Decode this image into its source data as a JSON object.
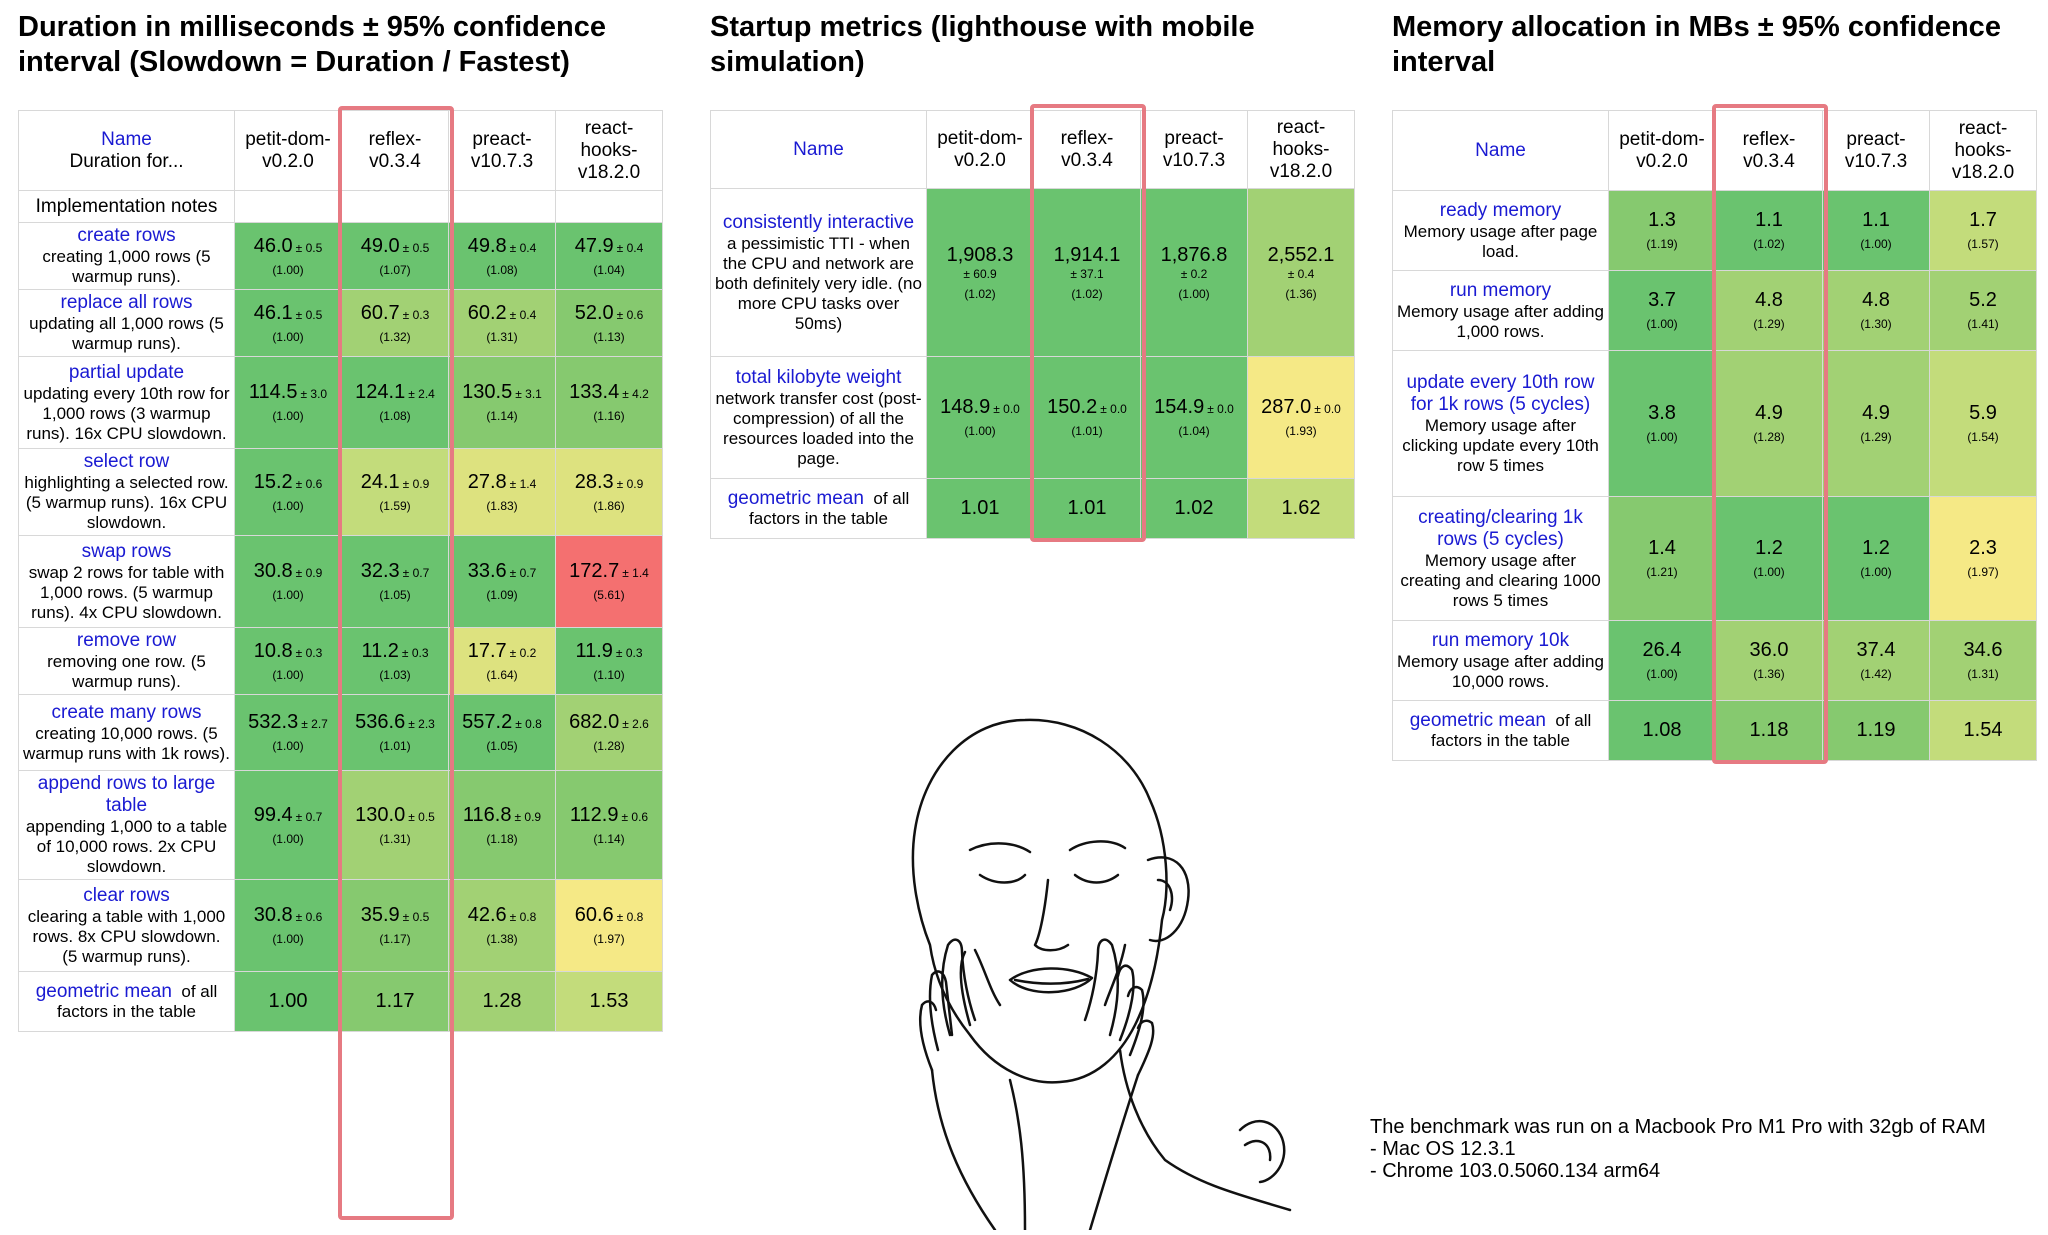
{
  "colors": {
    "g1": "#5cbd6e",
    "g2": "#6ac36f",
    "g3": "#86c96f",
    "g4": "#a2d174",
    "g5": "#c3dc7b",
    "y1": "#dde27f",
    "y2": "#f5e986",
    "r1": "#f47070",
    "highlight": "#e67a82",
    "link": "#1a1ad2"
  },
  "duration": {
    "title": "Duration in milliseconds ± 95% confidence interval (Slowdown = Duration / Fastest)",
    "header": {
      "name": "Name",
      "sub": "Duration for...",
      "cols": [
        "petit-dom-v0.2.0",
        "reflex-v0.3.4",
        "preact-v10.7.3",
        "react-hooks-v18.2.0"
      ]
    },
    "notes_label": "Implementation notes",
    "rows": [
      {
        "name": "create rows",
        "desc": "creating 1,000 rows (5 warmup runs).",
        "cells": [
          [
            "46.0",
            "± 0.5",
            "(1.00)",
            "g2"
          ],
          [
            "49.0",
            "± 0.5",
            "(1.07)",
            "g2"
          ],
          [
            "49.8",
            "± 0.4",
            "(1.08)",
            "g2"
          ],
          [
            "47.9",
            "± 0.4",
            "(1.04)",
            "g2"
          ]
        ]
      },
      {
        "name": "replace all rows",
        "desc": "updating all 1,000 rows (5 warmup runs).",
        "cells": [
          [
            "46.1",
            "± 0.5",
            "(1.00)",
            "g2"
          ],
          [
            "60.7",
            "± 0.3",
            "(1.32)",
            "g4"
          ],
          [
            "60.2",
            "± 0.4",
            "(1.31)",
            "g4"
          ],
          [
            "52.0",
            "± 0.6",
            "(1.13)",
            "g3"
          ]
        ]
      },
      {
        "name": "partial update",
        "desc": "updating every 10th row for 1,000 rows (3 warmup runs). 16x CPU slowdown.",
        "cells": [
          [
            "114.5",
            "± 3.0",
            "(1.00)",
            "g2"
          ],
          [
            "124.1",
            "± 2.4",
            "(1.08)",
            "g2"
          ],
          [
            "130.5",
            "± 3.1",
            "(1.14)",
            "g3"
          ],
          [
            "133.4",
            "± 4.2",
            "(1.16)",
            "g3"
          ]
        ]
      },
      {
        "name": "select row",
        "desc": "highlighting a selected row. (5 warmup runs). 16x CPU slowdown.",
        "cells": [
          [
            "15.2",
            "± 0.6",
            "(1.00)",
            "g2"
          ],
          [
            "24.1",
            "± 0.9",
            "(1.59)",
            "g5"
          ],
          [
            "27.8",
            "± 1.4",
            "(1.83)",
            "y1"
          ],
          [
            "28.3",
            "± 0.9",
            "(1.86)",
            "y1"
          ]
        ]
      },
      {
        "name": "swap rows",
        "desc": "swap 2 rows for table with 1,000 rows. (5 warmup runs). 4x CPU slowdown.",
        "cells": [
          [
            "30.8",
            "± 0.9",
            "(1.00)",
            "g2"
          ],
          [
            "32.3",
            "± 0.7",
            "(1.05)",
            "g2"
          ],
          [
            "33.6",
            "± 0.7",
            "(1.09)",
            "g2"
          ],
          [
            "172.7",
            "± 1.4",
            "(5.61)",
            "r1"
          ]
        ]
      },
      {
        "name": "remove row",
        "desc": "removing one row. (5 warmup runs).",
        "cells": [
          [
            "10.8",
            "± 0.3",
            "(1.00)",
            "g2"
          ],
          [
            "11.2",
            "± 0.3",
            "(1.03)",
            "g2"
          ],
          [
            "17.7",
            "± 0.2",
            "(1.64)",
            "y1"
          ],
          [
            "11.9",
            "± 0.3",
            "(1.10)",
            "g2"
          ]
        ]
      },
      {
        "name": "create many rows",
        "desc": "creating 10,000 rows. (5 warmup runs with 1k rows).",
        "cells": [
          [
            "532.3",
            "± 2.7",
            "(1.00)",
            "g2"
          ],
          [
            "536.6",
            "± 2.3",
            "(1.01)",
            "g2"
          ],
          [
            "557.2",
            "± 0.8",
            "(1.05)",
            "g2"
          ],
          [
            "682.0",
            "± 2.6",
            "(1.28)",
            "g4"
          ]
        ]
      },
      {
        "name": "append rows to large table",
        "desc": "appending 1,000 to a table of 10,000 rows. 2x CPU slowdown.",
        "cells": [
          [
            "99.4",
            "± 0.7",
            "(1.00)",
            "g2"
          ],
          [
            "130.0",
            "± 0.5",
            "(1.31)",
            "g4"
          ],
          [
            "116.8",
            "± 0.9",
            "(1.18)",
            "g3"
          ],
          [
            "112.9",
            "± 0.6",
            "(1.14)",
            "g3"
          ]
        ]
      },
      {
        "name": "clear rows",
        "desc": "clearing a table with 1,000 rows. 8x CPU slowdown. (5 warmup runs).",
        "cells": [
          [
            "30.8",
            "± 0.6",
            "(1.00)",
            "g2"
          ],
          [
            "35.9",
            "± 0.5",
            "(1.17)",
            "g3"
          ],
          [
            "42.6",
            "± 0.8",
            "(1.38)",
            "g4"
          ],
          [
            "60.6",
            "± 0.8",
            "(1.97)",
            "y2"
          ]
        ]
      }
    ],
    "gm": {
      "name": "geometric mean",
      "desc": "of all factors in the table",
      "cells": [
        [
          "1.00",
          "g2"
        ],
        [
          "1.17",
          "g3"
        ],
        [
          "1.28",
          "g4"
        ],
        [
          "1.53",
          "g5"
        ]
      ]
    }
  },
  "startup": {
    "title": "Startup metrics (lighthouse with mobile simulation)",
    "header": {
      "name": "Name",
      "cols": [
        "petit-dom-v0.2.0",
        "reflex-v0.3.4",
        "preact-v10.7.3",
        "react-hooks-v18.2.0"
      ]
    },
    "rows": [
      {
        "name": "consistently interactive",
        "desc": "a pessimistic TTI - when the CPU and network are both definitely very idle. (no more CPU tasks over 50ms)",
        "cells": [
          [
            "1,908.3",
            "± 60.9",
            "(1.02)",
            "g2"
          ],
          [
            "1,914.1",
            "± 37.1",
            "(1.02)",
            "g2"
          ],
          [
            "1,876.8",
            "± 0.2",
            "(1.00)",
            "g2"
          ],
          [
            "2,552.1",
            "± 0.4",
            "(1.36)",
            "g4"
          ]
        ]
      },
      {
        "name": "total kilobyte weight",
        "desc": "network transfer cost (post-compression) of all the resources loaded into the page.",
        "cells": [
          [
            "148.9",
            "± 0.0",
            "(1.00)",
            "g2"
          ],
          [
            "150.2",
            "± 0.0",
            "(1.01)",
            "g2"
          ],
          [
            "154.9",
            "± 0.0",
            "(1.04)",
            "g2"
          ],
          [
            "287.0",
            "± 0.0",
            "(1.93)",
            "y2"
          ]
        ]
      }
    ],
    "gm": {
      "name": "geometric mean",
      "desc": "of all factors in the table",
      "cells": [
        [
          "1.01",
          "g2"
        ],
        [
          "1.01",
          "g2"
        ],
        [
          "1.02",
          "g2"
        ],
        [
          "1.62",
          "g5"
        ]
      ]
    }
  },
  "memory": {
    "title": "Memory allocation in MBs ± 95% confidence interval",
    "header": {
      "name": "Name",
      "cols": [
        "petit-dom-v0.2.0",
        "reflex-v0.3.4",
        "preact-v10.7.3",
        "react-hooks-v18.2.0"
      ]
    },
    "rows": [
      {
        "name": "ready memory",
        "desc": "Memory usage after page load.",
        "cells": [
          [
            "1.3",
            "(1.19)",
            "g3"
          ],
          [
            "1.1",
            "(1.02)",
            "g2"
          ],
          [
            "1.1",
            "(1.00)",
            "g2"
          ],
          [
            "1.7",
            "(1.57)",
            "g5"
          ]
        ]
      },
      {
        "name": "run memory",
        "desc": "Memory usage after adding 1,000 rows.",
        "cells": [
          [
            "3.7",
            "(1.00)",
            "g2"
          ],
          [
            "4.8",
            "(1.29)",
            "g4"
          ],
          [
            "4.8",
            "(1.30)",
            "g4"
          ],
          [
            "5.2",
            "(1.41)",
            "g4"
          ]
        ]
      },
      {
        "name": "update every 10th row for 1k rows (5 cycles)",
        "desc": "Memory usage after clicking update every 10th row 5 times",
        "cells": [
          [
            "3.8",
            "(1.00)",
            "g2"
          ],
          [
            "4.9",
            "(1.28)",
            "g4"
          ],
          [
            "4.9",
            "(1.29)",
            "g4"
          ],
          [
            "5.9",
            "(1.54)",
            "g5"
          ]
        ]
      },
      {
        "name": "creating/clearing 1k rows (5 cycles)",
        "desc": "Memory usage after creating and clearing 1000 rows 5 times",
        "cells": [
          [
            "1.4",
            "(1.21)",
            "g3"
          ],
          [
            "1.2",
            "(1.00)",
            "g2"
          ],
          [
            "1.2",
            "(1.00)",
            "g2"
          ],
          [
            "2.3",
            "(1.97)",
            "y2"
          ]
        ]
      },
      {
        "name": "run memory 10k",
        "desc": "Memory usage after adding 10,000 rows.",
        "cells": [
          [
            "26.4",
            "(1.00)",
            "g2"
          ],
          [
            "36.0",
            "(1.36)",
            "g4"
          ],
          [
            "37.4",
            "(1.42)",
            "g4"
          ],
          [
            "34.6",
            "(1.31)",
            "g4"
          ]
        ]
      }
    ],
    "gm": {
      "name": "geometric mean",
      "desc": "of all factors in the table",
      "cells": [
        [
          "1.08",
          "g2"
        ],
        [
          "1.18",
          "g3"
        ],
        [
          "1.19",
          "g3"
        ],
        [
          "1.54",
          "g5"
        ]
      ]
    }
  },
  "footer": {
    "line1": "The benchmark was run on a Macbook Pro M1 Pro with 32gb of RAM",
    "line2": "- Mac OS 12.3.1",
    "line3": "- Chrome 103.0.5060.134 arm64"
  },
  "meme": {
    "description_icon": "relief-face-illustration"
  }
}
